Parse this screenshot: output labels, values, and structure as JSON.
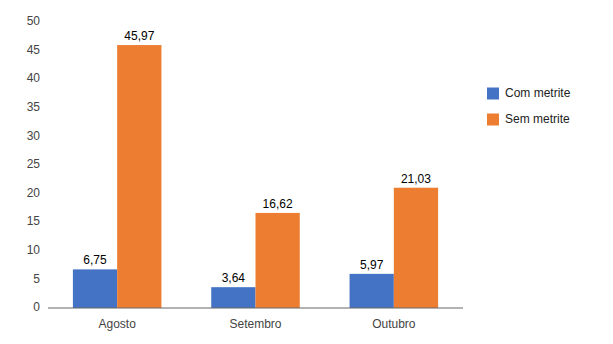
{
  "chart_data": {
    "type": "bar",
    "categories": [
      "Agosto",
      "Setembro",
      "Outubro"
    ],
    "series": [
      {
        "name": "Com metrite",
        "color": "#4472C4",
        "values": [
          6.75,
          3.64,
          5.97
        ],
        "value_labels": [
          "6,75",
          "3,64",
          "5,97"
        ]
      },
      {
        "name": "Sem metrite",
        "color": "#ED7D31",
        "values": [
          45.97,
          16.62,
          21.03
        ],
        "value_labels": [
          "45,97",
          "16,62",
          "21,03"
        ]
      }
    ],
    "ylim": [
      0,
      50
    ],
    "yticks": [
      0,
      5,
      10,
      15,
      20,
      25,
      30,
      35,
      40,
      45,
      50
    ],
    "grid": false,
    "legend": "right",
    "data_labels": true
  }
}
